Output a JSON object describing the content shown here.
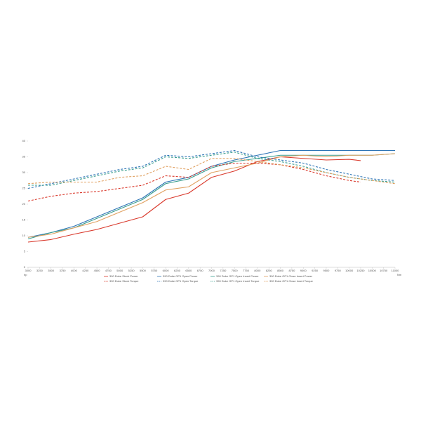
{
  "chart_data": {
    "type": "line",
    "x_label": "hp",
    "y2_label": "Nm",
    "xlim": [
      3000,
      11000
    ],
    "xticks": [
      3000,
      3250,
      3500,
      3750,
      4000,
      4250,
      4500,
      4750,
      5000,
      5250,
      5500,
      5750,
      6000,
      6250,
      6500,
      6750,
      7000,
      7250,
      7500,
      7750,
      8000,
      8250,
      8500,
      8750,
      9000,
      9250,
      9500,
      9750,
      10000,
      10250,
      10500,
      10750,
      11000
    ],
    "ylim": [
      0,
      40
    ],
    "yticks": [
      0,
      5,
      10,
      15,
      20,
      25,
      30,
      35,
      40
    ],
    "series": [
      {
        "name": "390 Duke Stock Power",
        "color": "#d9382b",
        "dashed": false,
        "x": [
          3000,
          3500,
          4000,
          4500,
          5000,
          5500,
          6000,
          6500,
          7000,
          7500,
          8000,
          8500,
          9000,
          9500,
          10000,
          10250
        ],
        "values": [
          8,
          8.8,
          10.5,
          12,
          14,
          16,
          21.5,
          23.5,
          28.5,
          30.5,
          33.5,
          35,
          34.5,
          34,
          34.2,
          33.8
        ]
      },
      {
        "name": "390 Duke GP1 Open Power",
        "color": "#2e75b6",
        "dashed": false,
        "x": [
          3000,
          3500,
          4000,
          4500,
          5000,
          5500,
          6000,
          6500,
          7000,
          7500,
          8000,
          8500,
          9000,
          9500,
          10000,
          10500,
          11000
        ],
        "values": [
          9.5,
          11,
          13,
          16,
          19,
          22,
          27,
          28.5,
          32,
          34,
          35.5,
          37,
          37,
          37,
          37,
          37,
          37
        ]
      },
      {
        "name": "390 Duke GP1 Open Insert Power",
        "color": "#3a9e8f",
        "dashed": false,
        "x": [
          3000,
          3500,
          4000,
          4500,
          5000,
          5500,
          6000,
          6500,
          7000,
          7500,
          8000,
          8500,
          9000,
          9500,
          10000,
          10500,
          11000
        ],
        "values": [
          9,
          11,
          12.5,
          15.5,
          18.5,
          21.5,
          26.5,
          28,
          31.5,
          33.5,
          34.5,
          35.5,
          35.5,
          35.5,
          35.5,
          35.5,
          36
        ]
      },
      {
        "name": "390 Duke GP1 Close Insert Power",
        "color": "#e0a060",
        "dashed": false,
        "x": [
          3000,
          3500,
          4000,
          4500,
          5000,
          5500,
          6000,
          6500,
          7000,
          7500,
          8000,
          8500,
          9000,
          9500,
          10000,
          10500,
          11000
        ],
        "values": [
          9.5,
          10.5,
          12.5,
          14.5,
          17.5,
          20.5,
          24.5,
          25.5,
          30,
          31.5,
          33,
          35,
          35.5,
          35,
          35.5,
          35.5,
          36
        ]
      },
      {
        "name": "390 Duke Stock Torque",
        "color": "#d9382b",
        "dashed": true,
        "x": [
          3000,
          3500,
          4000,
          4500,
          5000,
          5500,
          6000,
          6500,
          7000,
          7500,
          8000,
          8500,
          9000,
          9500,
          10000,
          10250
        ],
        "values": [
          21,
          22.5,
          23.5,
          24,
          25,
          26,
          29,
          28.5,
          32,
          33,
          33,
          32.5,
          31,
          29,
          27.5,
          27
        ]
      },
      {
        "name": "390 Duke GP1 Open Torque",
        "color": "#2e75b6",
        "dashed": true,
        "x": [
          3000,
          3500,
          4000,
          4500,
          5000,
          5500,
          6000,
          6500,
          7000,
          7500,
          8000,
          8500,
          9000,
          9500,
          10000,
          10500,
          11000
        ],
        "values": [
          25,
          26.5,
          28,
          29.5,
          31,
          32,
          35.5,
          35,
          36,
          37,
          35,
          34,
          33,
          31,
          29.5,
          28,
          27.5
        ]
      },
      {
        "name": "390 Duke GP1 Open Insert Torque",
        "color": "#3a9e8f",
        "dashed": true,
        "x": [
          3000,
          3500,
          4000,
          4500,
          5000,
          5500,
          6000,
          6500,
          7000,
          7500,
          8000,
          8500,
          9000,
          9500,
          10000,
          10500,
          11000
        ],
        "values": [
          26,
          26,
          27.5,
          29,
          30.5,
          31.5,
          35,
          34.5,
          35.5,
          36.5,
          34.5,
          33.5,
          32,
          30,
          28.5,
          27.5,
          27
        ]
      },
      {
        "name": "390 Duke GP1 Close Insert Torque",
        "color": "#e0a060",
        "dashed": true,
        "x": [
          3000,
          3500,
          4000,
          4500,
          5000,
          5500,
          6000,
          6500,
          7000,
          7500,
          8000,
          8500,
          9000,
          9500,
          10000,
          10500,
          11000
        ],
        "values": [
          26.5,
          27,
          27,
          27,
          28.5,
          29,
          32,
          31,
          34.5,
          34.5,
          33.5,
          32.5,
          31.5,
          30,
          28.5,
          27.5,
          26.5
        ]
      }
    ]
  }
}
